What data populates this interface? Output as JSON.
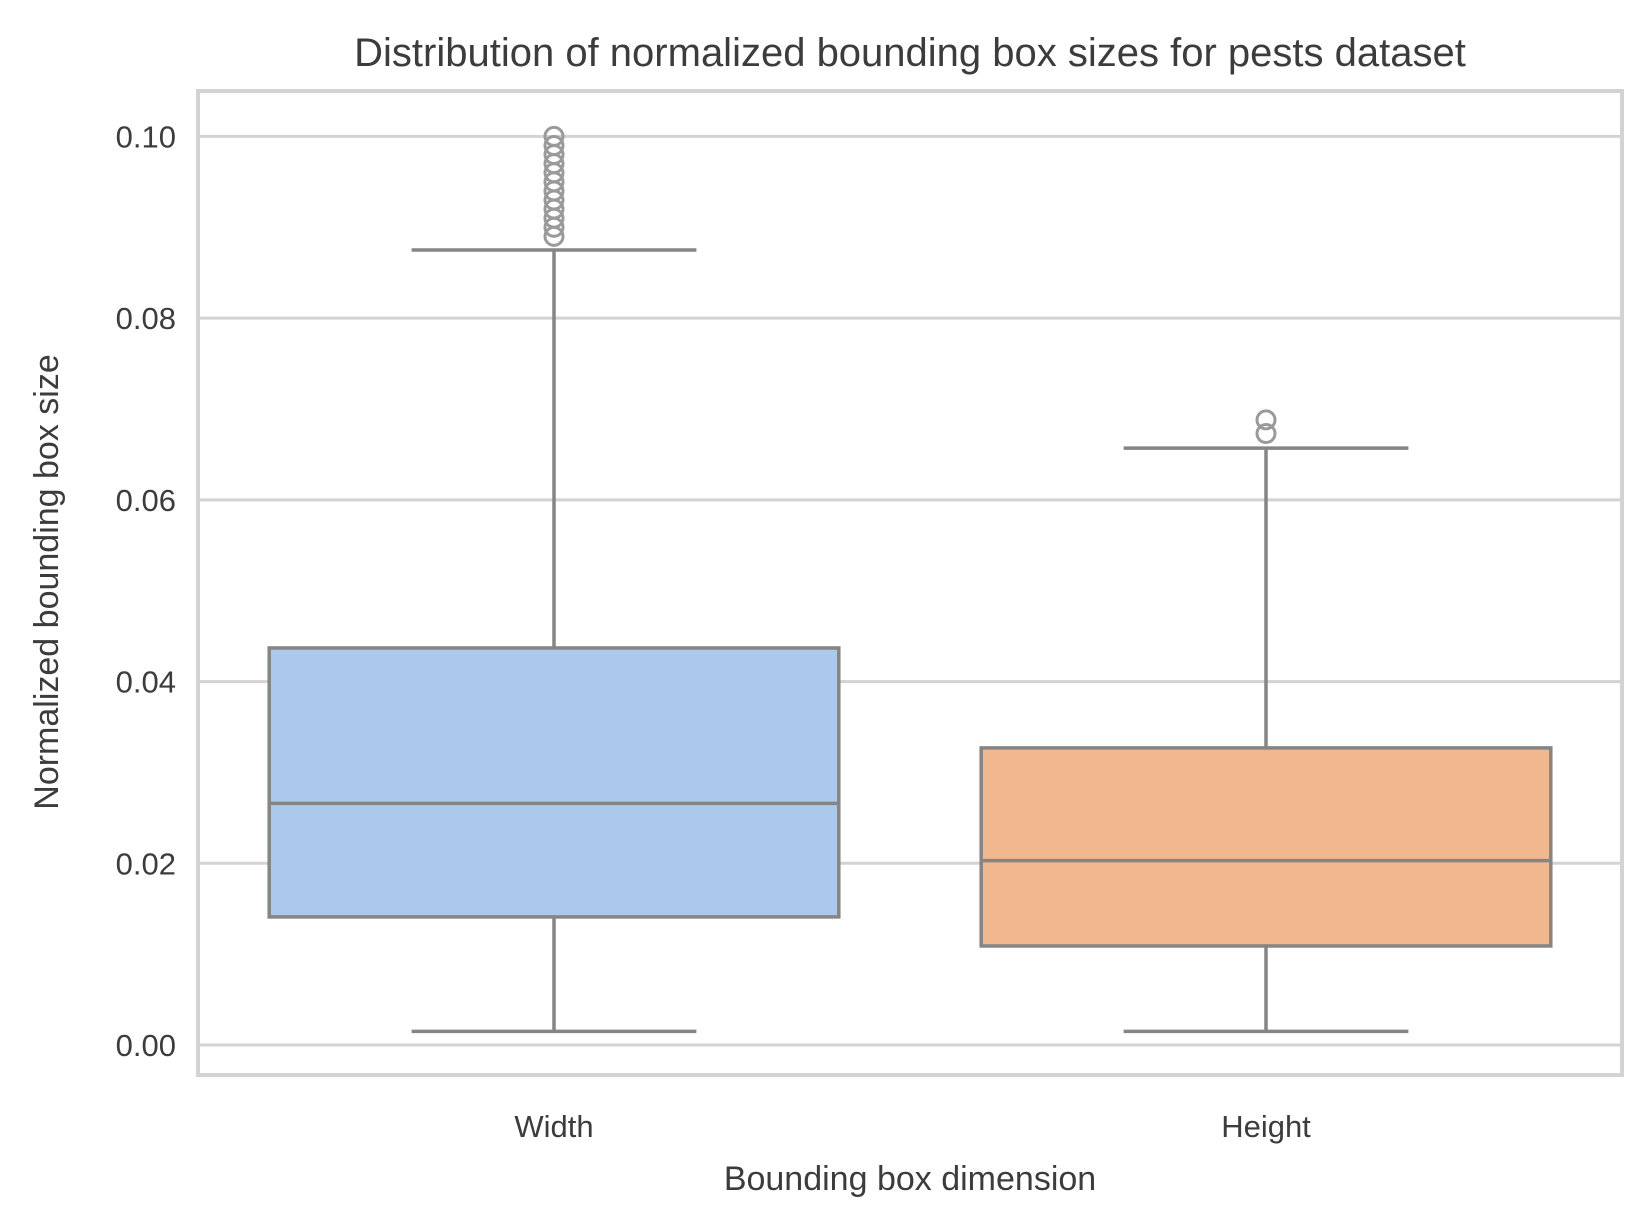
{
  "chart_data": {
    "type": "box",
    "title": "Distribution of normalized bounding box sizes for pests dataset",
    "xlabel": "Bounding box dimension",
    "ylabel": "Normalized bounding box size",
    "ylim": [
      -0.0033,
      0.105
    ],
    "yticks": [
      0.0,
      0.02,
      0.04,
      0.06,
      0.08,
      0.1
    ],
    "ytick_labels": [
      "0.00",
      "0.02",
      "0.04",
      "0.06",
      "0.08",
      "0.10"
    ],
    "grid": true,
    "categories": [
      "Width",
      "Height"
    ],
    "series": [
      {
        "category": "Width",
        "color": "#abc9ea",
        "whisker_low": 0.0015,
        "q1": 0.0141,
        "median": 0.0266,
        "q3": 0.0437,
        "whisker_high": 0.0875,
        "outliers": [
          0.089,
          0.09,
          0.091,
          0.092,
          0.093,
          0.094,
          0.095,
          0.096,
          0.097,
          0.098,
          0.099,
          0.1
        ]
      },
      {
        "category": "Height",
        "color": "#f1b890",
        "whisker_low": 0.0015,
        "q1": 0.0109,
        "median": 0.0203,
        "q3": 0.0327,
        "whisker_high": 0.0657,
        "outliers": [
          0.0673,
          0.0688
        ]
      }
    ]
  }
}
